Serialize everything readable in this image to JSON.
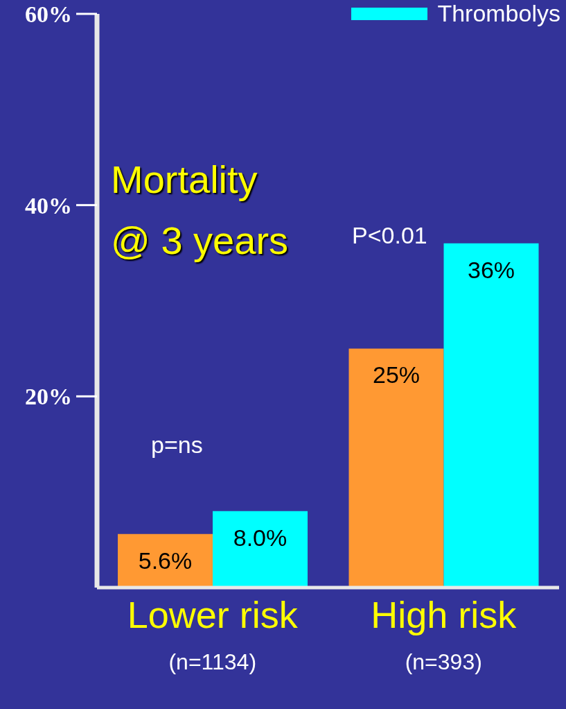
{
  "chart_data": {
    "type": "bar",
    "title": "Mortality @ 3 years",
    "categories": [
      "Lower risk",
      "High risk"
    ],
    "series": [
      {
        "color": "#ff9933",
        "values": [
          5.6,
          25
        ],
        "value_labels": [
          "5.6%",
          "25%"
        ]
      },
      {
        "name": "Thrombolys",
        "color": "#00ffff",
        "values": [
          8.0,
          36
        ],
        "value_labels": [
          "8.0%",
          "36%"
        ]
      }
    ],
    "ylim": [
      0,
      60
    ],
    "yticks": [
      {
        "value": 20,
        "label": "20%"
      },
      {
        "value": 40,
        "label": "40%"
      },
      {
        "value": 60,
        "label": "60%"
      }
    ],
    "annotations": [
      "p=ns",
      "P<0.01",
      "(n=1134)",
      "(n=393)"
    ],
    "legend": "top right",
    "grid": false
  }
}
